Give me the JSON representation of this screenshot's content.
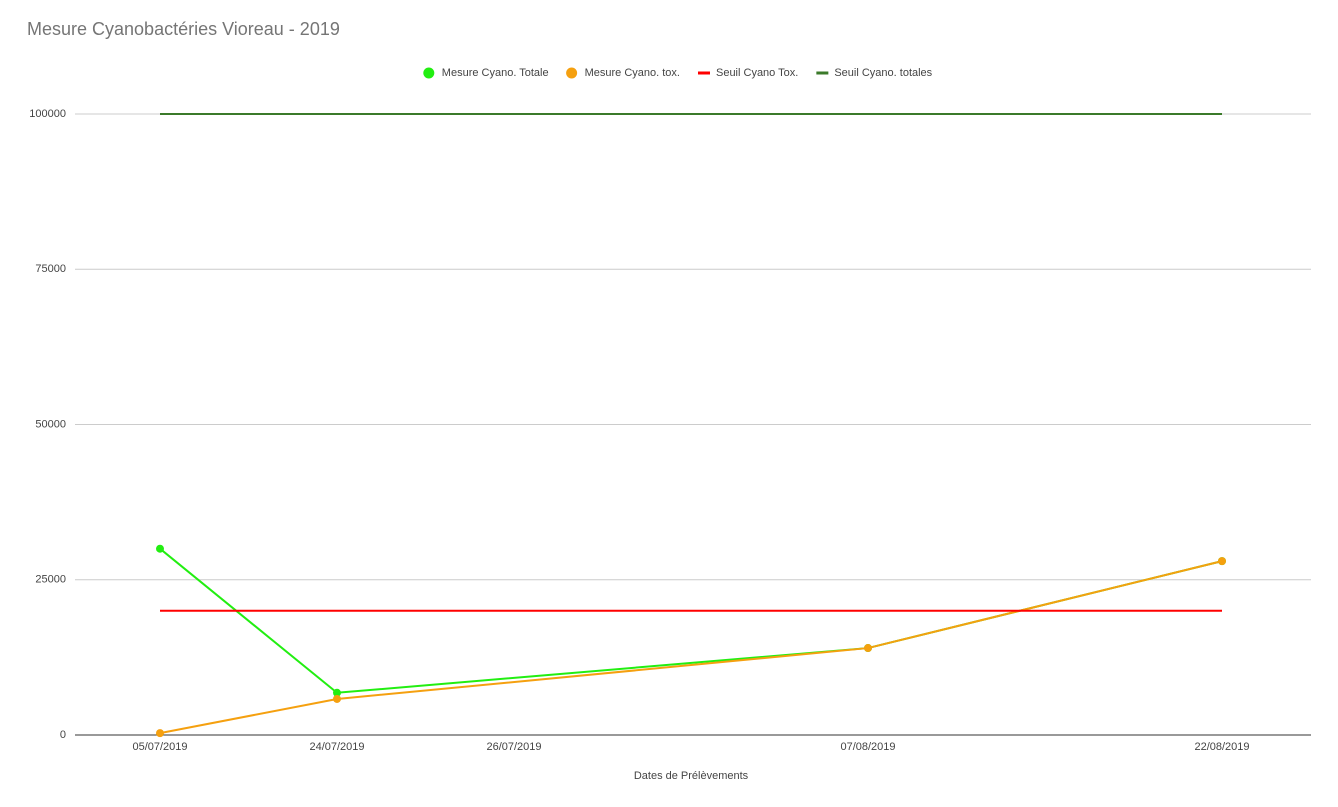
{
  "chart_data": {
    "type": "line",
    "title": "Mesure Cyanobactéries Vioreau - 2019",
    "x_label": "Dates de Prélèvements",
    "categories": [
      "05/07/2019",
      "24/07/2019",
      "26/07/2019",
      null,
      "07/08/2019",
      null,
      "22/08/2019"
    ],
    "interpolate_nulls": true,
    "series": [
      {
        "name": "Mesure Cyano. Totale",
        "color": "#22ee11",
        "points": true,
        "values": [
          30000,
          6800,
          null,
          null,
          14000,
          null,
          28000
        ]
      },
      {
        "name": "Mesure Cyano. tox.",
        "color": "#f5a00f",
        "points": true,
        "values": [
          300,
          5800,
          null,
          null,
          14000,
          null,
          28000
        ]
      },
      {
        "name": "Seuil Cyano Tox.",
        "color": "#ff0000",
        "points": false,
        "values": [
          20000,
          20000,
          20000,
          20000,
          20000,
          20000,
          20000
        ]
      },
      {
        "name": "Seuil Cyano. totales",
        "color": "#3b7a2a",
        "points": false,
        "values": [
          100000,
          100000,
          100000,
          100000,
          100000,
          100000,
          100000
        ]
      }
    ],
    "ylim": [
      0,
      100000
    ],
    "yticks": [
      0,
      25000,
      50000,
      75000,
      100000
    ],
    "grid": true,
    "legend": "top"
  }
}
